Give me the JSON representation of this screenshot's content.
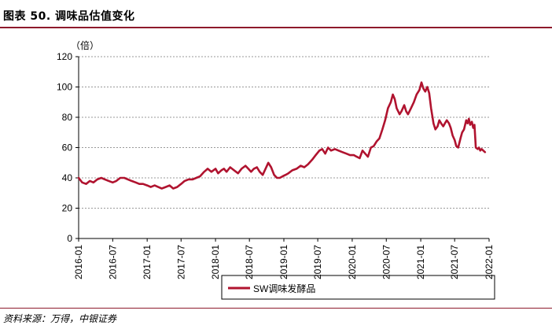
{
  "figure": {
    "title": "图表 50. 调味品估值变化",
    "source": "资料来源：万得，中银证券"
  },
  "colors": {
    "series": "#b0132f",
    "rule": "#8e1a2c",
    "grid": "#999999"
  },
  "chart_data": {
    "type": "line",
    "ylabel": "（倍）",
    "ylim": [
      0,
      120
    ],
    "yticks": [
      0,
      20,
      40,
      60,
      80,
      100,
      120
    ],
    "xlim": [
      "2016-01",
      "2022-01"
    ],
    "xticks": [
      "2016-01",
      "2016-07",
      "2017-01",
      "2017-07",
      "2018-01",
      "2018-07",
      "2019-01",
      "2019-07",
      "2020-01",
      "2020-07",
      "2021-01",
      "2021-07",
      "2022-01"
    ],
    "grid": "horizontal-dashed",
    "legend": "bottom-center",
    "series": [
      {
        "name": "SW调味发酵品",
        "points": [
          [
            "2016-01-01",
            40
          ],
          [
            "2016-01-20",
            37
          ],
          [
            "2016-02-10",
            36
          ],
          [
            "2016-03-01",
            38
          ],
          [
            "2016-03-20",
            37
          ],
          [
            "2016-04-10",
            39
          ],
          [
            "2016-05-01",
            40
          ],
          [
            "2016-05-20",
            39
          ],
          [
            "2016-06-10",
            38
          ],
          [
            "2016-07-01",
            37
          ],
          [
            "2016-07-20",
            38
          ],
          [
            "2016-08-10",
            40
          ],
          [
            "2016-09-01",
            40
          ],
          [
            "2016-09-20",
            39
          ],
          [
            "2016-10-10",
            38
          ],
          [
            "2016-11-01",
            37
          ],
          [
            "2016-11-20",
            36
          ],
          [
            "2016-12-10",
            36
          ],
          [
            "2017-01-01",
            35
          ],
          [
            "2017-01-20",
            34
          ],
          [
            "2017-02-10",
            35
          ],
          [
            "2017-03-01",
            34
          ],
          [
            "2017-03-20",
            33
          ],
          [
            "2017-04-10",
            34
          ],
          [
            "2017-05-01",
            35
          ],
          [
            "2017-05-20",
            33
          ],
          [
            "2017-06-10",
            34
          ],
          [
            "2017-07-01",
            36
          ],
          [
            "2017-07-20",
            38
          ],
          [
            "2017-08-10",
            39
          ],
          [
            "2017-09-01",
            39
          ],
          [
            "2017-09-20",
            40
          ],
          [
            "2017-10-10",
            41
          ],
          [
            "2017-11-01",
            44
          ],
          [
            "2017-11-20",
            46
          ],
          [
            "2017-12-10",
            44
          ],
          [
            "2018-01-01",
            46
          ],
          [
            "2018-01-15",
            43
          ],
          [
            "2018-02-01",
            45
          ],
          [
            "2018-02-15",
            46
          ],
          [
            "2018-03-01",
            44
          ],
          [
            "2018-03-20",
            47
          ],
          [
            "2018-04-10",
            45
          ],
          [
            "2018-05-01",
            43
          ],
          [
            "2018-05-20",
            46
          ],
          [
            "2018-06-10",
            48
          ],
          [
            "2018-06-25",
            46
          ],
          [
            "2018-07-10",
            44
          ],
          [
            "2018-07-25",
            46
          ],
          [
            "2018-08-10",
            47
          ],
          [
            "2018-08-25",
            44
          ],
          [
            "2018-09-10",
            42
          ],
          [
            "2018-09-25",
            46
          ],
          [
            "2018-10-10",
            50
          ],
          [
            "2018-10-25",
            47
          ],
          [
            "2018-11-10",
            42
          ],
          [
            "2018-11-25",
            40
          ],
          [
            "2018-12-10",
            40
          ],
          [
            "2018-12-25",
            41
          ],
          [
            "2019-01-10",
            42
          ],
          [
            "2019-01-25",
            43
          ],
          [
            "2019-02-15",
            45
          ],
          [
            "2019-03-10",
            46
          ],
          [
            "2019-04-01",
            48
          ],
          [
            "2019-04-20",
            47
          ],
          [
            "2019-05-10",
            49
          ],
          [
            "2019-06-01",
            52
          ],
          [
            "2019-06-20",
            55
          ],
          [
            "2019-07-10",
            58
          ],
          [
            "2019-07-25",
            59
          ],
          [
            "2019-08-10",
            56
          ],
          [
            "2019-08-25",
            60
          ],
          [
            "2019-09-10",
            58
          ],
          [
            "2019-10-01",
            59
          ],
          [
            "2019-10-20",
            58
          ],
          [
            "2019-11-10",
            57
          ],
          [
            "2019-12-01",
            56
          ],
          [
            "2019-12-20",
            55
          ],
          [
            "2020-01-10",
            55
          ],
          [
            "2020-01-25",
            54
          ],
          [
            "2020-02-10",
            53
          ],
          [
            "2020-02-25",
            58
          ],
          [
            "2020-03-10",
            56
          ],
          [
            "2020-03-25",
            54
          ],
          [
            "2020-04-10",
            60
          ],
          [
            "2020-04-25",
            61
          ],
          [
            "2020-05-10",
            64
          ],
          [
            "2020-05-25",
            66
          ],
          [
            "2020-06-10",
            72
          ],
          [
            "2020-06-25",
            78
          ],
          [
            "2020-07-10",
            86
          ],
          [
            "2020-07-25",
            90
          ],
          [
            "2020-08-05",
            95
          ],
          [
            "2020-08-15",
            92
          ],
          [
            "2020-08-25",
            86
          ],
          [
            "2020-09-10",
            82
          ],
          [
            "2020-09-20",
            84
          ],
          [
            "2020-10-05",
            88
          ],
          [
            "2020-10-15",
            84
          ],
          [
            "2020-10-25",
            82
          ],
          [
            "2020-11-10",
            86
          ],
          [
            "2020-11-25",
            90
          ],
          [
            "2020-12-10",
            95
          ],
          [
            "2020-12-25",
            98
          ],
          [
            "2021-01-05",
            103
          ],
          [
            "2021-01-15",
            99
          ],
          [
            "2021-01-25",
            97
          ],
          [
            "2021-02-05",
            100
          ],
          [
            "2021-02-15",
            96
          ],
          [
            "2021-02-25",
            86
          ],
          [
            "2021-03-10",
            76
          ],
          [
            "2021-03-20",
            72
          ],
          [
            "2021-04-01",
            74
          ],
          [
            "2021-04-10",
            78
          ],
          [
            "2021-04-20",
            76
          ],
          [
            "2021-05-01",
            74
          ],
          [
            "2021-05-10",
            76
          ],
          [
            "2021-05-20",
            78
          ],
          [
            "2021-06-01",
            76
          ],
          [
            "2021-06-10",
            73
          ],
          [
            "2021-06-20",
            68
          ],
          [
            "2021-07-01",
            65
          ],
          [
            "2021-07-10",
            61
          ],
          [
            "2021-07-20",
            60
          ],
          [
            "2021-08-01",
            66
          ],
          [
            "2021-08-10",
            70
          ],
          [
            "2021-08-20",
            72
          ],
          [
            "2021-09-01",
            78
          ],
          [
            "2021-09-08",
            76
          ],
          [
            "2021-09-15",
            79
          ],
          [
            "2021-09-22",
            75
          ],
          [
            "2021-10-01",
            77
          ],
          [
            "2021-10-08",
            73
          ],
          [
            "2021-10-15",
            75
          ],
          [
            "2021-10-22",
            60
          ],
          [
            "2021-11-01",
            59
          ],
          [
            "2021-11-08",
            60
          ],
          [
            "2021-11-15",
            58
          ],
          [
            "2021-11-22",
            59
          ],
          [
            "2021-12-01",
            58
          ],
          [
            "2021-12-10",
            57
          ]
        ]
      }
    ]
  }
}
